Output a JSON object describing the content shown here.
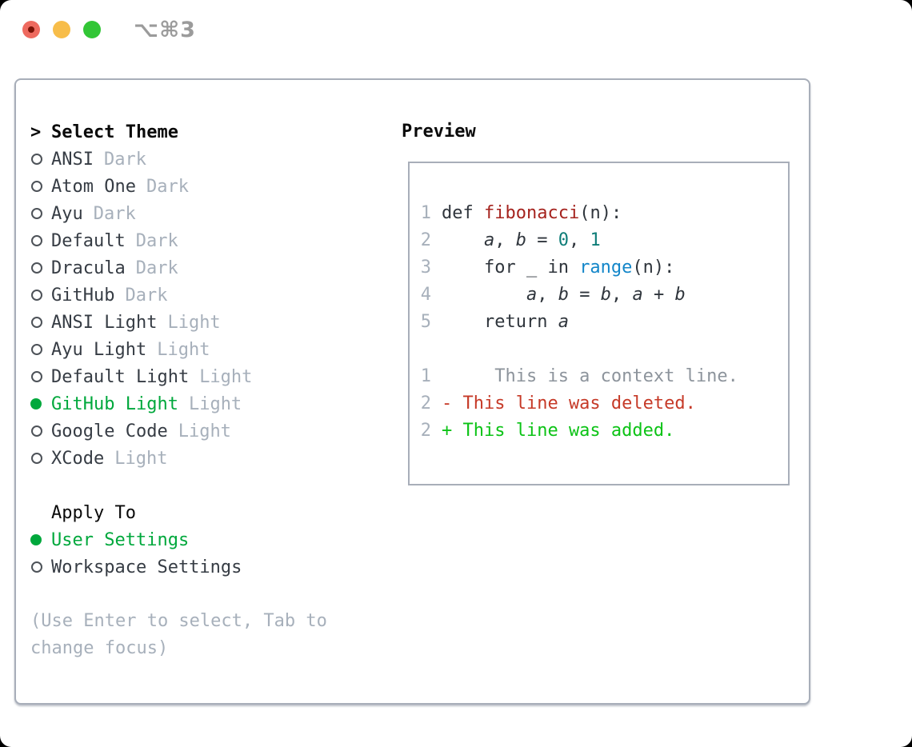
{
  "window": {
    "title": "⌥⌘3",
    "traffic_lights": [
      {
        "icon": "close-icon"
      },
      {
        "icon": "minimize-icon"
      },
      {
        "icon": "zoom-icon"
      }
    ]
  },
  "left": {
    "header_prefix": ">",
    "header": "Select Theme",
    "themes": [
      {
        "name": "ANSI",
        "variant": "Dark",
        "selected": false
      },
      {
        "name": "Atom One",
        "variant": "Dark",
        "selected": false
      },
      {
        "name": "Ayu",
        "variant": "Dark",
        "selected": false
      },
      {
        "name": "Default",
        "variant": "Dark",
        "selected": false
      },
      {
        "name": "Dracula",
        "variant": "Dark",
        "selected": false
      },
      {
        "name": "GitHub",
        "variant": "Dark",
        "selected": false
      },
      {
        "name": "ANSI Light",
        "variant": "Light",
        "selected": false
      },
      {
        "name": "Ayu Light",
        "variant": "Light",
        "selected": false
      },
      {
        "name": "Default Light",
        "variant": "Light",
        "selected": false
      },
      {
        "name": "GitHub Light",
        "variant": "Light",
        "selected": true
      },
      {
        "name": "Google Code",
        "variant": "Light",
        "selected": false
      },
      {
        "name": "XCode",
        "variant": "Light",
        "selected": false
      }
    ],
    "apply_to": {
      "header": "Apply To",
      "options": [
        {
          "label": "User Settings",
          "selected": true
        },
        {
          "label": "Workspace Settings",
          "selected": false
        }
      ]
    },
    "hint_lines": [
      "(Use Enter to select, Tab to",
      "change focus)"
    ]
  },
  "preview": {
    "header": "Preview",
    "code_lines": [
      {
        "num": "1",
        "tokens": [
          {
            "t": "def "
          },
          {
            "t": "fibonacci",
            "c": "func"
          },
          {
            "t": "(n):"
          }
        ]
      },
      {
        "num": "2",
        "tokens": [
          {
            "t": "    "
          },
          {
            "t": "a",
            "c": "var"
          },
          {
            "t": ", "
          },
          {
            "t": "b",
            "c": "var"
          },
          {
            "t": " = "
          },
          {
            "t": "0",
            "c": "num"
          },
          {
            "t": ", "
          },
          {
            "t": "1",
            "c": "num"
          }
        ]
      },
      {
        "num": "3",
        "tokens": [
          {
            "t": "    for _ in "
          },
          {
            "t": "range",
            "c": "builtin"
          },
          {
            "t": "(n):"
          }
        ]
      },
      {
        "num": "4",
        "tokens": [
          {
            "t": "        "
          },
          {
            "t": "a",
            "c": "var"
          },
          {
            "t": ", "
          },
          {
            "t": "b",
            "c": "var"
          },
          {
            "t": " = "
          },
          {
            "t": "b",
            "c": "var"
          },
          {
            "t": ", "
          },
          {
            "t": "a",
            "c": "var"
          },
          {
            "t": " + "
          },
          {
            "t": "b",
            "c": "var"
          }
        ]
      },
      {
        "num": "5",
        "tokens": [
          {
            "t": "    return "
          },
          {
            "t": "a",
            "c": "var"
          }
        ]
      },
      {
        "num": "",
        "tokens": []
      },
      {
        "num": "1",
        "tokens": [
          {
            "t": "     This is a context line.",
            "c": "ctx"
          }
        ]
      },
      {
        "num": "2",
        "tokens": [
          {
            "t": "- This line was deleted.",
            "c": "del"
          }
        ]
      },
      {
        "num": "2",
        "tokens": [
          {
            "t": "+ This line was added.",
            "c": "add"
          }
        ]
      }
    ]
  },
  "colors": {
    "selected_green": "#00a83c",
    "added_green": "#0cc316",
    "deleted_red": "#c63a28",
    "function_red": "#a5231e",
    "number_teal": "#0e7d78",
    "builtin_blue": "#1386c9",
    "muted_gray": "#a7b0bb",
    "ink": "#363c44",
    "border_gray": "#a8aeb9",
    "traffic_red": "#ee6a5f",
    "traffic_yellow": "#f7bd4a",
    "traffic_green": "#32c636"
  }
}
